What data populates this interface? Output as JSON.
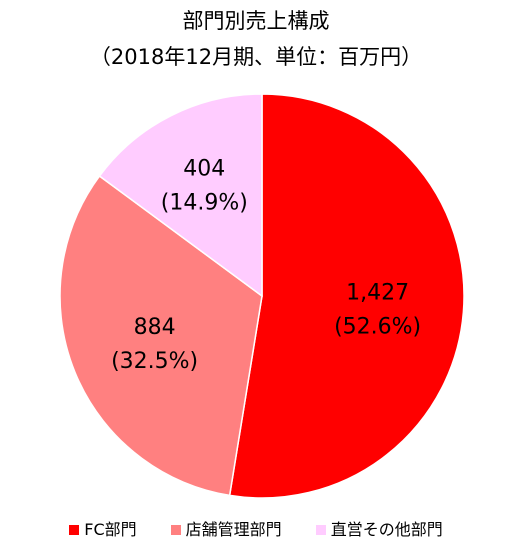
{
  "chart_data": {
    "type": "pie",
    "title": "部門別売上構成",
    "subtitle": "（2018年12月期、単位：百万円）",
    "categories": [
      "FC部門",
      "店舗管理部門",
      "直営その他部門"
    ],
    "values": [
      1427,
      884,
      404
    ],
    "value_labels": [
      "1,427",
      "884",
      "404"
    ],
    "percent_labels": [
      "(52.6%)",
      "(32.5%)",
      "(14.9%)"
    ],
    "colors": [
      "#ff0000",
      "#ff8080",
      "#ffccff"
    ],
    "start": "12 o'clock",
    "direction": "clockwise",
    "legend_position": "bottom"
  }
}
